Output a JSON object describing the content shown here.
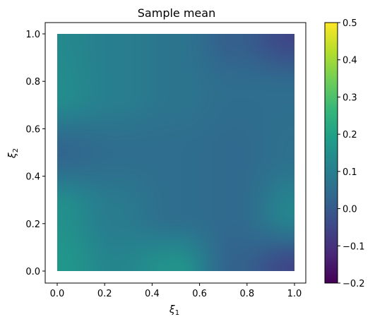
{
  "chart_data": {
    "type": "heatmap",
    "title": "Sample mean",
    "xlabel": "ξ",
    "xlabel_sub": "1",
    "ylabel": "ξ",
    "ylabel_sub": "2",
    "xlim": [
      0,
      1
    ],
    "ylim": [
      0,
      1
    ],
    "x_ticks": [
      "0.0",
      "0.2",
      "0.4",
      "0.6",
      "0.8",
      "1.0"
    ],
    "y_ticks": [
      "0.0",
      "0.2",
      "0.4",
      "0.6",
      "0.8",
      "1.0"
    ],
    "colormap": "viridis",
    "colorbar_range": [
      -0.2,
      0.5
    ],
    "colorbar_ticks": [
      "−0.2",
      "−0.1",
      "0.0",
      "0.1",
      "0.2",
      "0.3",
      "0.4",
      "0.5"
    ],
    "grid": false,
    "grid_x": [
      0,
      0.25,
      0.5,
      0.75,
      1
    ],
    "grid_y": [
      0,
      0.25,
      0.5,
      0.75,
      1
    ],
    "z_values": [
      [
        0.17,
        0.12,
        0.16,
        0.02,
        -0.05
      ],
      [
        0.15,
        0.09,
        0.05,
        0.04,
        0.12
      ],
      [
        0.03,
        0.05,
        0.05,
        0.04,
        0.06
      ],
      [
        0.14,
        0.1,
        0.07,
        0.05,
        0.05
      ],
      [
        0.13,
        0.1,
        0.07,
        0.01,
        -0.05
      ]
    ]
  }
}
